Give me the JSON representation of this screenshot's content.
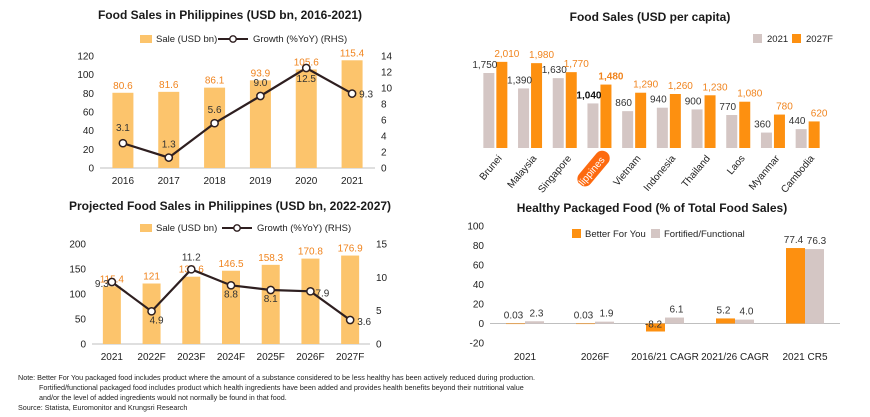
{
  "colors": {
    "bar_light": "#fcc46c",
    "bar_orange": "#fd9010",
    "bar_grey": "#d4c6c4",
    "line_dark": "#2e1f20",
    "label_orange": "#f0841e",
    "highlight_pill": "#fd6a10"
  },
  "chart_data": [
    {
      "type": "bar",
      "title": "Food Sales in Philippines (USD bn, 2016-2021)",
      "categories": [
        "2016",
        "2017",
        "2018",
        "2019",
        "2020",
        "2021"
      ],
      "series": [
        {
          "name": "Sale (USD bn)",
          "type": "bar",
          "axis": "left",
          "values": [
            80.6,
            81.6,
            86.1,
            93.9,
            105.6,
            115.4
          ]
        },
        {
          "name": "Growth (%YoY) (RHS)",
          "type": "line",
          "axis": "right",
          "values": [
            3.1,
            1.3,
            5.6,
            9.0,
            12.5,
            9.3
          ]
        }
      ],
      "y_left": {
        "ylim": [
          0,
          120
        ],
        "ticks": [
          "0",
          "20",
          "40",
          "60",
          "80",
          "100",
          "120"
        ]
      },
      "y_right": {
        "ylim": [
          0,
          14
        ],
        "ticks": [
          "0",
          "2",
          "4",
          "6",
          "8",
          "10",
          "12",
          "14"
        ]
      },
      "bar_labels": [
        "80.6",
        "81.6",
        "86.1",
        "93.9",
        "105.6",
        "115.4"
      ],
      "line_labels": [
        "3.1",
        "1.3",
        "5.6",
        "9.0",
        "12.5",
        "9.3"
      ],
      "legend": "top"
    },
    {
      "type": "bar",
      "title": "Projected Food Sales in Philippines (USD bn, 2022-2027)",
      "categories": [
        "2021",
        "2022F",
        "2023F",
        "2024F",
        "2025F",
        "2026F",
        "2027F"
      ],
      "series": [
        {
          "name": "Sale (USD bn)",
          "type": "bar",
          "axis": "left",
          "values": [
            115.4,
            121,
            134.6,
            146.5,
            158.3,
            170.8,
            176.9
          ]
        },
        {
          "name": "Growth (%YoY) (RHS)",
          "type": "line",
          "axis": "right",
          "values": [
            9.3,
            4.9,
            11.2,
            8.8,
            8.1,
            7.9,
            3.6
          ]
        }
      ],
      "y_left": {
        "ylim": [
          0,
          200
        ],
        "ticks": [
          "0",
          "50",
          "100",
          "150",
          "200"
        ]
      },
      "y_right": {
        "ylim": [
          0,
          15
        ],
        "ticks": [
          "0",
          "5",
          "10",
          "15"
        ]
      },
      "bar_labels": [
        "115.4",
        "121",
        "134.6",
        "146.5",
        "158.3",
        "170.8",
        "176.9"
      ],
      "line_labels": [
        "9.3",
        "4.9",
        "11.2",
        "8.8",
        "8.1",
        "7.9",
        "3.6"
      ],
      "legend": "top"
    },
    {
      "type": "bar",
      "title": "Food Sales (USD per capita)",
      "categories": [
        "Brunei",
        "Malaysia",
        "Singapore",
        "Philippines",
        "Vietnam",
        "Indonesia",
        "Thailand",
        "Laos",
        "Myanmar",
        "Cambodia"
      ],
      "highlight_category": "Philippines",
      "series": [
        {
          "name": "2021",
          "values": [
            1750,
            1390,
            1630,
            1040,
            860,
            940,
            900,
            770,
            360,
            440
          ]
        },
        {
          "name": "2027F",
          "values": [
            2010,
            1980,
            1770,
            1480,
            1290,
            1260,
            1230,
            1080,
            780,
            620
          ]
        }
      ],
      "labels_2021": [
        "1,750",
        "1,390",
        "1,630",
        "1,040",
        "860",
        "940",
        "900",
        "770",
        "360",
        "440"
      ],
      "labels_2027F": [
        "2,010",
        "1,980",
        "1,770",
        "1,480",
        "1,290",
        "1,260",
        "1,230",
        "1,080",
        "780",
        "620"
      ],
      "ylim": [
        0,
        2100
      ],
      "legend": "top-right"
    },
    {
      "type": "bar",
      "title": "Healthy Packaged Food (% of Total Food Sales)",
      "categories": [
        "2021",
        "2026F",
        "2016/21 CAGR",
        "2021/26 CAGR",
        "2021 CR5"
      ],
      "series": [
        {
          "name": "Better For You",
          "values": [
            0.03,
            0.03,
            -8.2,
            5.2,
            77.4
          ]
        },
        {
          "name": "Fortified/Functional",
          "values": [
            2.3,
            1.9,
            6.1,
            4.0,
            76.3
          ]
        }
      ],
      "labels_a": [
        "0.03",
        "0.03",
        "-8.2",
        "5.2",
        "77.4"
      ],
      "labels_b": [
        "2.3",
        "1.9",
        "6.1",
        "4.0",
        "76.3"
      ],
      "ylim": [
        -20,
        100
      ],
      "y_ticks": [
        "-20",
        "0",
        "20",
        "40",
        "60",
        "80",
        "100"
      ],
      "legend": "top"
    }
  ],
  "notes": {
    "line1": "Note:   Better For You packaged food includes product where the amount of a substance considered to be less healthy has been actively reduced during production.",
    "line2": "Fortified/functional packaged food includes product which health ingredients have been added and provides health benefits beyond their nutritional value",
    "line3": "and/or the level of added ingredients would not normally be found in that food.",
    "source": "Source: Statista, Euromonitor and Krungsri Research"
  }
}
